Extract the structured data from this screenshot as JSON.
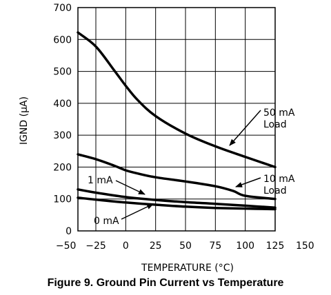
{
  "figure_caption": "Figure 9. Ground Pin Current vs Temperature",
  "chart_data": {
    "type": "line",
    "xlabel": "TEMPERATURE (°C)",
    "ylabel": "IGND (μA)",
    "xlim": [
      -50,
      150
    ],
    "ylim": [
      0,
      700
    ],
    "x_ticks": [
      "−50",
      "−25",
      "0",
      "25",
      "50",
      "75",
      "100",
      "125",
      "150"
    ],
    "y_ticks": [
      "0",
      "100",
      "200",
      "300",
      "400",
      "500",
      "600",
      "700"
    ],
    "grid": true,
    "series": [
      {
        "name": "50 mA Load",
        "x": [
          -40,
          -25,
          -10,
          0,
          10,
          25,
          50,
          75,
          100,
          125
        ],
        "y": [
          622,
          578,
          505,
          455,
          410,
          360,
          305,
          265,
          232,
          200
        ]
      },
      {
        "name": "10 mA Load",
        "x": [
          -40,
          -25,
          -10,
          0,
          10,
          25,
          50,
          75,
          90,
          100,
          125
        ],
        "y": [
          240,
          225,
          205,
          190,
          180,
          168,
          155,
          140,
          125,
          110,
          100
        ]
      },
      {
        "name": "1 mA",
        "x": [
          -40,
          -25,
          0,
          25,
          50,
          75,
          100,
          125
        ],
        "y": [
          130,
          120,
          106,
          97,
          90,
          85,
          79,
          73
        ]
      },
      {
        "name": "0 mA",
        "x": [
          -40,
          -25,
          0,
          25,
          50,
          75,
          100,
          125
        ],
        "y": [
          104,
          98,
          89,
          82,
          76,
          72,
          70,
          68
        ]
      }
    ],
    "annotations": [
      {
        "lines": [
          "50 mA",
          "Load"
        ],
        "series": "50 mA Load"
      },
      {
        "lines": [
          "10 mA",
          "Load"
        ],
        "series": "10 mA Load"
      },
      {
        "lines": [
          "1 mA"
        ],
        "series": "1 mA"
      },
      {
        "lines": [
          "0 mA"
        ],
        "series": "0 mA"
      }
    ]
  }
}
